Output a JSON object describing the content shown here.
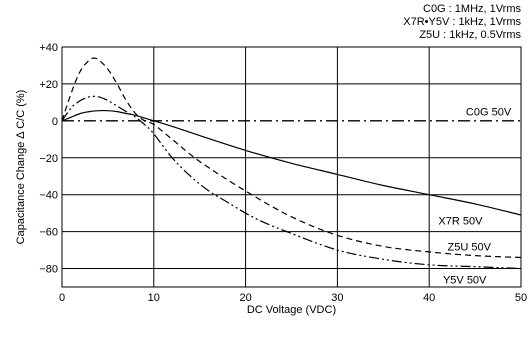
{
  "conditions": [
    "C0G : 1MHz, 1Vrms",
    "X7R•Y5V : 1kHz, 1Vrms",
    "Z5U : 1kHz, 0.5Vrms"
  ],
  "chart_data": {
    "type": "line",
    "xlabel": "DC Voltage (VDC)",
    "ylabel": "Capacitance Change ∆ C/C (%)",
    "xlim": [
      0,
      50
    ],
    "ylim": [
      -90,
      40
    ],
    "xticks": [
      0,
      10,
      20,
      30,
      40,
      50
    ],
    "xtick_labels": [
      "0",
      "10",
      "20",
      "30",
      "40",
      "50"
    ],
    "yticks": [
      40,
      20,
      0,
      -20,
      -40,
      -60,
      -80
    ],
    "ytick_labels": [
      "+40",
      "+20",
      "0",
      "−20",
      "−40",
      "−60",
      "−80"
    ],
    "grid": true,
    "series": [
      {
        "name": "C0G 50V",
        "style": "dash-dot",
        "x": [
          0,
          10,
          20,
          30,
          40,
          50
        ],
        "y": [
          0,
          0,
          0,
          0,
          0,
          0
        ]
      },
      {
        "name": "X7R 50V",
        "style": "solid",
        "x": [
          0,
          1,
          2,
          3,
          4,
          5,
          6,
          7,
          8,
          9,
          10,
          12,
          15,
          20,
          25,
          30,
          35,
          40,
          45,
          50
        ],
        "y": [
          0,
          2,
          4,
          5,
          5.5,
          5.5,
          5,
          4,
          3,
          1.5,
          0,
          -3,
          -8,
          -16,
          -23,
          -29,
          -35,
          -40,
          -45,
          -51
        ]
      },
      {
        "name": "Y5V 50V",
        "style": "dash-dot-dot",
        "x": [
          0,
          1,
          2,
          3,
          4,
          5,
          6,
          7,
          8,
          9,
          10,
          12,
          14,
          16,
          18,
          20,
          22,
          25,
          30,
          35,
          40,
          45,
          50
        ],
        "y": [
          0,
          7,
          11,
          13,
          13,
          11,
          8,
          5,
          2,
          -2,
          -7,
          -20,
          -30,
          -38,
          -44,
          -50,
          -55,
          -61,
          -70,
          -75,
          -78,
          -79,
          -80
        ]
      },
      {
        "name": "Z5U 50V",
        "style": "dashed",
        "x": [
          0,
          1,
          2,
          3,
          3.5,
          4,
          5,
          6,
          7,
          8,
          9,
          10,
          12,
          15,
          20,
          25,
          30,
          35,
          40,
          45,
          50
        ],
        "y": [
          0,
          15,
          27,
          33,
          34,
          33,
          28,
          20,
          11,
          4,
          0,
          -2,
          -10,
          -22,
          -38,
          -52,
          -62,
          -68,
          -71,
          -73,
          -74
        ]
      }
    ],
    "series_label_positions": {
      "C0G 50V": [
        44,
        5
      ],
      "X7R 50V": [
        41,
        -54
      ],
      "Z5U 50V": [
        42,
        -68
      ],
      "Y5V 50V": [
        41.5,
        -86
      ]
    }
  }
}
